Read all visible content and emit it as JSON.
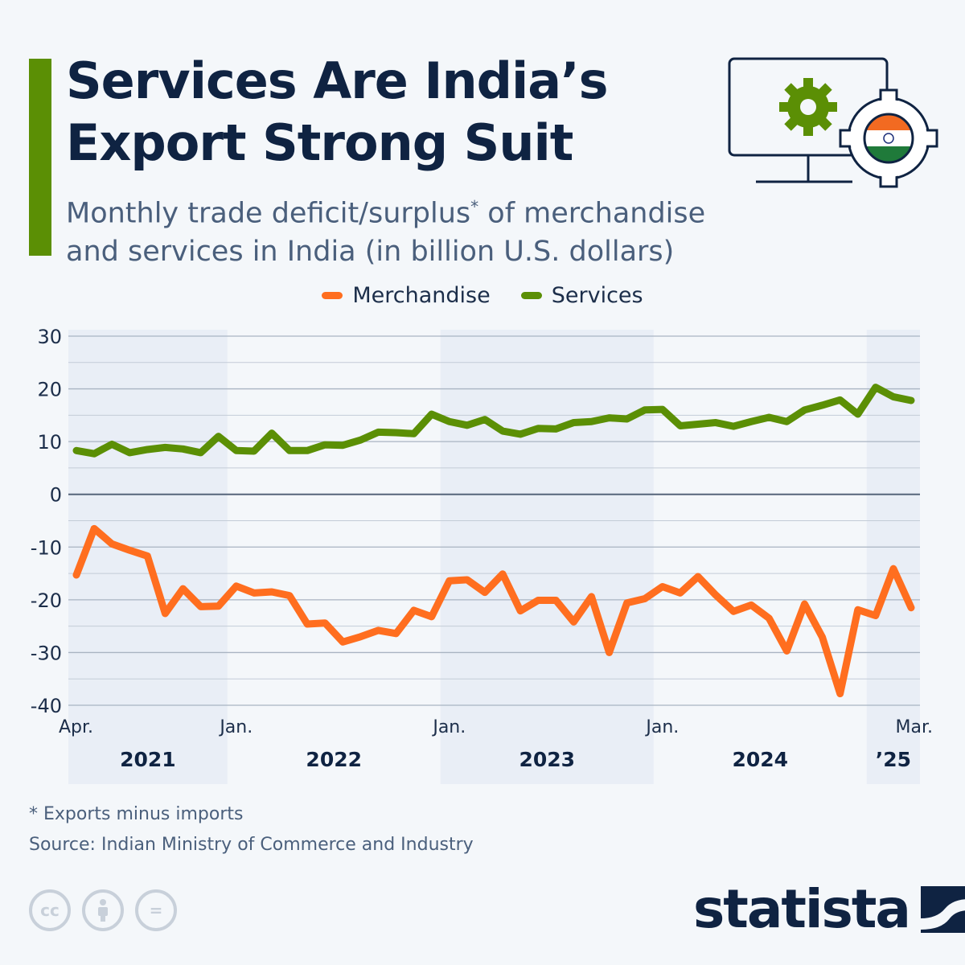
{
  "header": {
    "title_line1": "Services Are India’s",
    "title_line2": "Export Strong Suit",
    "subtitle_part1": "Monthly trade deficit/surplus",
    "subtitle_sup": "*",
    "subtitle_part2": " of merchandise and services in India (in billion U.S. dollars)"
  },
  "colors": {
    "accent": "#5b8f05",
    "merchandise": "#ff6e1f",
    "services": "#5b8f05",
    "title": "#0f2342",
    "band": "#e9eef6"
  },
  "chart_data": {
    "type": "line",
    "title": "",
    "xlabel": "",
    "ylabel": "",
    "ylim": [
      -40,
      30
    ],
    "yticks": [
      30,
      20,
      10,
      0,
      -10,
      -20,
      -30,
      -40
    ],
    "grid": true,
    "legend_placement": "top-center",
    "x_start": "2021-04",
    "x_end": "2025-03",
    "x_tick_labels": [
      {
        "label": "Apr.",
        "month": "2021-04"
      },
      {
        "label": "Jan.",
        "month": "2022-01"
      },
      {
        "label": "Jan.",
        "month": "2023-01"
      },
      {
        "label": "Jan.",
        "month": "2024-01"
      },
      {
        "label": "Mar.",
        "month": "2025-03"
      }
    ],
    "year_labels": [
      {
        "label": "2021",
        "from": "2021-04",
        "to": "2021-12",
        "shaded": true
      },
      {
        "label": "2022",
        "from": "2022-01",
        "to": "2022-12",
        "shaded": false
      },
      {
        "label": "2023",
        "from": "2023-01",
        "to": "2023-12",
        "shaded": true
      },
      {
        "label": "2024",
        "from": "2024-01",
        "to": "2024-12",
        "shaded": false
      },
      {
        "label": "’25",
        "from": "2025-01",
        "to": "2025-03",
        "shaded": true
      }
    ],
    "series": [
      {
        "name": "Merchandise",
        "color": "#ff6e1f",
        "values": [
          -15.3,
          -6.5,
          -9.4,
          -10.6,
          -11.7,
          -22.6,
          -17.9,
          -21.3,
          -21.2,
          -17.4,
          -18.7,
          -18.5,
          -19.2,
          -24.6,
          -24.4,
          -28.0,
          -27.0,
          -25.8,
          -26.4,
          -22.0,
          -23.2,
          -16.4,
          -16.2,
          -18.6,
          -15.1,
          -22.1,
          -20.1,
          -20.1,
          -24.2,
          -19.4,
          -30.0,
          -20.6,
          -19.8,
          -17.5,
          -18.7,
          -15.6,
          -19.1,
          -22.2,
          -21.0,
          -23.5,
          -29.7,
          -20.8,
          -27.1,
          -37.8,
          -21.9,
          -23.0,
          -14.1,
          -21.5
        ]
      },
      {
        "name": "Services",
        "color": "#5b8f05",
        "values": [
          8.3,
          7.7,
          9.5,
          7.9,
          8.5,
          8.9,
          8.6,
          7.9,
          11.0,
          8.3,
          8.2,
          11.6,
          8.3,
          8.3,
          9.4,
          9.3,
          10.3,
          11.8,
          11.7,
          11.5,
          15.2,
          13.8,
          13.1,
          14.2,
          12.0,
          11.4,
          12.5,
          12.4,
          13.6,
          13.8,
          14.5,
          14.3,
          16.0,
          16.1,
          13.0,
          13.3,
          13.6,
          12.9,
          13.8,
          14.6,
          13.8,
          16.0,
          16.9,
          17.9,
          15.2,
          20.3,
          18.5,
          17.8
        ]
      }
    ]
  },
  "footer": {
    "footnote": "* Exports minus imports",
    "source": "Source: Indian Ministry of Commerce and Industry",
    "license_icons": [
      "cc-icon",
      "attribution-icon",
      "no-derivatives-icon"
    ],
    "cc_text": "cc",
    "nd_text": "=",
    "logo_text": "statista"
  }
}
